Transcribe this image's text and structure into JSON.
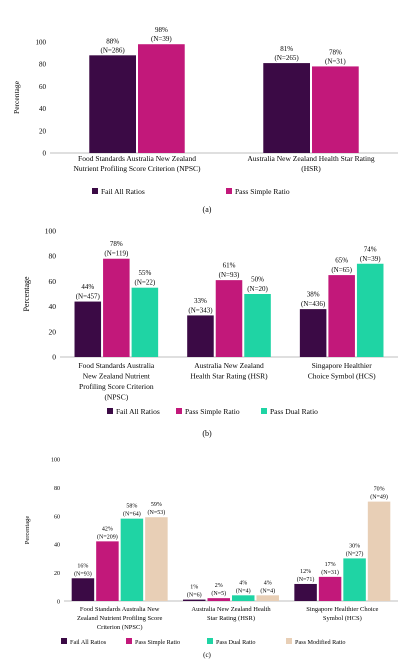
{
  "chart_data": [
    {
      "type": "bar",
      "panel_label": "(a)",
      "ylabel": "Percentage",
      "ylim": [
        0,
        100
      ],
      "yticks": [
        0,
        20,
        40,
        60,
        80,
        100
      ],
      "categories": [
        [
          "Food Standards Australia New Zealand",
          "Nutrient Profiling Score Criterion (NPSC)"
        ],
        [
          "Australia New Zealand Health Star Rating",
          "(HSR)"
        ]
      ],
      "series": [
        {
          "name": "Fail All Ratios",
          "color": "#3b0a45",
          "values": [
            88,
            81
          ],
          "labels": [
            "88%",
            "81%"
          ],
          "n": [
            "(N=286)",
            "(N=265)"
          ]
        },
        {
          "name": "Pass Simple Ratio",
          "color": "#c2187a",
          "values": [
            98,
            78
          ],
          "labels": [
            "98%",
            "78%"
          ],
          "n": [
            "(N=39)",
            "(N=31)"
          ]
        }
      ]
    },
    {
      "type": "bar",
      "panel_label": "(b)",
      "ylabel": "Percentage",
      "ylim": [
        0,
        100
      ],
      "yticks": [
        0,
        20,
        40,
        60,
        80,
        100
      ],
      "categories": [
        [
          "Food Standards Australia",
          "New Zealand Nutrient",
          "Profiling Score Criterion",
          "(NPSC)"
        ],
        [
          "Australia New Zealand",
          "Health Star Rating (HSR)"
        ],
        [
          "Singapore Healthier",
          "Choice Symbol (HCS)"
        ]
      ],
      "series": [
        {
          "name": "Fail All Ratios",
          "color": "#3b0a45",
          "values": [
            44,
            33,
            38
          ],
          "labels": [
            "44%",
            "33%",
            "38%"
          ],
          "n": [
            "(N=457)",
            "(N=343)",
            "(N=436)"
          ]
        },
        {
          "name": "Pass Simple Ratio",
          "color": "#c2187a",
          "values": [
            78,
            61,
            65
          ],
          "labels": [
            "78%",
            "61%",
            "65%"
          ],
          "n": [
            "(N=119)",
            "(N=93)",
            "(N=65)"
          ]
        },
        {
          "name": "Pass Dual Ratio",
          "color": "#1fd4a4",
          "values": [
            55,
            50,
            74
          ],
          "labels": [
            "55%",
            "50%",
            "74%"
          ],
          "n": [
            "(N=22)",
            "(N=20)",
            "(N=39)"
          ]
        }
      ]
    },
    {
      "type": "bar",
      "panel_label": "(c)",
      "ylabel": "Percentage",
      "ylim": [
        0,
        100
      ],
      "yticks": [
        0,
        20,
        40,
        60,
        80,
        100
      ],
      "categories": [
        [
          "Food Standards Australia New",
          "Zealand Nutrient Profiling Score",
          "Criterion (NPSC)"
        ],
        [
          "Australia New Zealand Health",
          "Star Rating (HSR)"
        ],
        [
          "Singapore Healthier Choice",
          "Symbol (HCS)"
        ]
      ],
      "series": [
        {
          "name": "Fail All Ratios",
          "color": "#3b0a45",
          "values": [
            16,
            1,
            12
          ],
          "labels": [
            "16%",
            "1%",
            "12%"
          ],
          "n": [
            "(N=93)",
            "(N=6)",
            "(N=71)"
          ]
        },
        {
          "name": "Pass Simple Ratio",
          "color": "#c2187a",
          "values": [
            42,
            2,
            17
          ],
          "labels": [
            "42%",
            "2%",
            "17%"
          ],
          "n": [
            "(N=209)",
            "(N=5)",
            "(N=31)"
          ]
        },
        {
          "name": "Pass Dual Ratio",
          "color": "#1fd4a4",
          "values": [
            58,
            4,
            30
          ],
          "labels": [
            "58%",
            "4%",
            "30%"
          ],
          "n": [
            "(N=64)",
            "(N=4)",
            "(N=27)"
          ]
        },
        {
          "name": "Pass Modified Ratio",
          "color": "#e8cfb6",
          "values": [
            59,
            4,
            70
          ],
          "labels": [
            "59%",
            "4%",
            "70%"
          ],
          "n": [
            "(N=53)",
            "(N=4)",
            "(N=49)"
          ]
        }
      ]
    }
  ]
}
